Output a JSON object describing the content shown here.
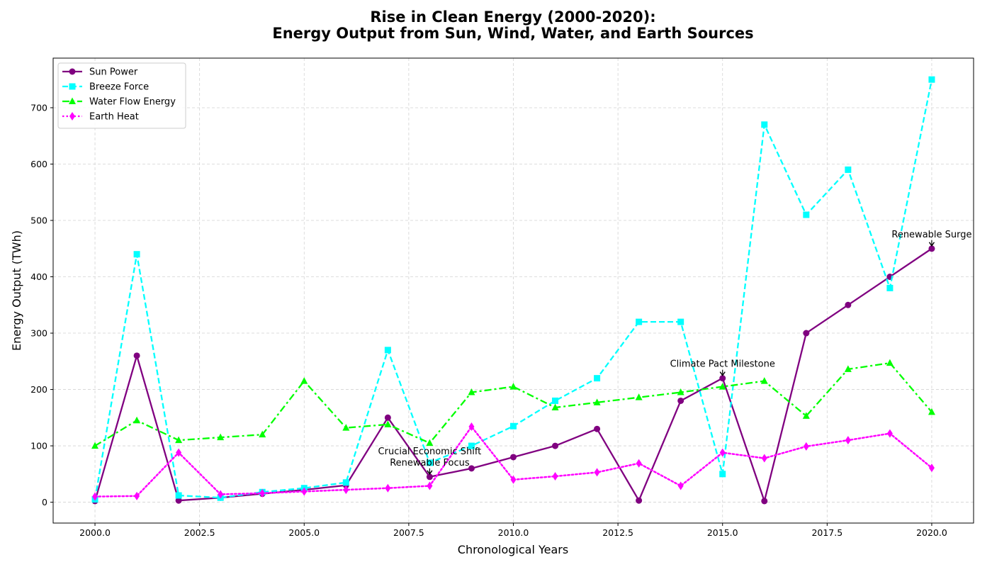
{
  "chart_data": {
    "type": "line",
    "title": "Rise in Clean Energy (2000-2020):",
    "subtitle": "Energy Output from Sun, Wind, Water, and Earth Sources",
    "xlabel": "Chronological Years",
    "ylabel": "Energy Output (TWh)",
    "xlim": [
      1999.0,
      2021.0
    ],
    "ylim": [
      -37,
      788
    ],
    "xticks": [
      2000.0,
      2002.5,
      2005.0,
      2007.5,
      2010.0,
      2012.5,
      2015.0,
      2017.5,
      2020.0
    ],
    "xtick_labels": [
      "2000.0",
      "2002.5",
      "2005.0",
      "2007.5",
      "2010.0",
      "2012.5",
      "2015.0",
      "2017.5",
      "2020.0"
    ],
    "yticks": [
      0,
      100,
      200,
      300,
      400,
      500,
      600,
      700
    ],
    "ytick_labels": [
      "0",
      "100",
      "200",
      "300",
      "400",
      "500",
      "600",
      "700"
    ],
    "grid": true,
    "legend_position": "top-left",
    "x": [
      2000,
      2001,
      2002,
      2003,
      2004,
      2005,
      2006,
      2007,
      2008,
      2009,
      2010,
      2011,
      2012,
      2013,
      2014,
      2015,
      2016,
      2017,
      2018,
      2019,
      2020
    ],
    "series": [
      {
        "name": "Sun Power",
        "color": "#800080",
        "dash": "solid",
        "marker": "circle",
        "values": [
          2,
          260,
          3,
          8,
          15,
          22,
          30,
          150,
          45,
          60,
          80,
          100,
          130,
          3,
          180,
          220,
          2,
          300,
          350,
          400,
          450
        ]
      },
      {
        "name": "Breeze Force",
        "color": "#00ffff",
        "dash": "dashed",
        "marker": "square",
        "values": [
          5,
          440,
          12,
          8,
          18,
          25,
          35,
          270,
          70,
          100,
          135,
          180,
          220,
          320,
          320,
          50,
          670,
          510,
          590,
          380,
          750
        ]
      },
      {
        "name": "Water Flow Energy",
        "color": "#00ff00",
        "dash": "dashdot",
        "marker": "triangle",
        "values": [
          100,
          145,
          110,
          115,
          120,
          215,
          132,
          138,
          105,
          195,
          205,
          168,
          177,
          186,
          195,
          205,
          215,
          153,
          236,
          247,
          160
        ]
      },
      {
        "name": "Earth Heat",
        "color": "#ff00ff",
        "dash": "dotted",
        "marker": "diamond",
        "values": [
          10,
          11,
          88,
          14,
          16,
          19,
          22,
          25,
          29,
          134,
          40,
          46,
          53,
          69,
          29,
          88,
          78,
          99,
          110,
          122,
          61
        ]
      }
    ],
    "annotations": [
      {
        "lines": [
          "Crucial Economic Shift",
          "Renewable Focus"
        ],
        "x": 2008,
        "y": 45
      },
      {
        "lines": [
          "Climate Pact Milestone"
        ],
        "x": 2015,
        "y": 220
      },
      {
        "lines": [
          "Renewable Surge"
        ],
        "x": 2020,
        "y": 450
      }
    ]
  }
}
